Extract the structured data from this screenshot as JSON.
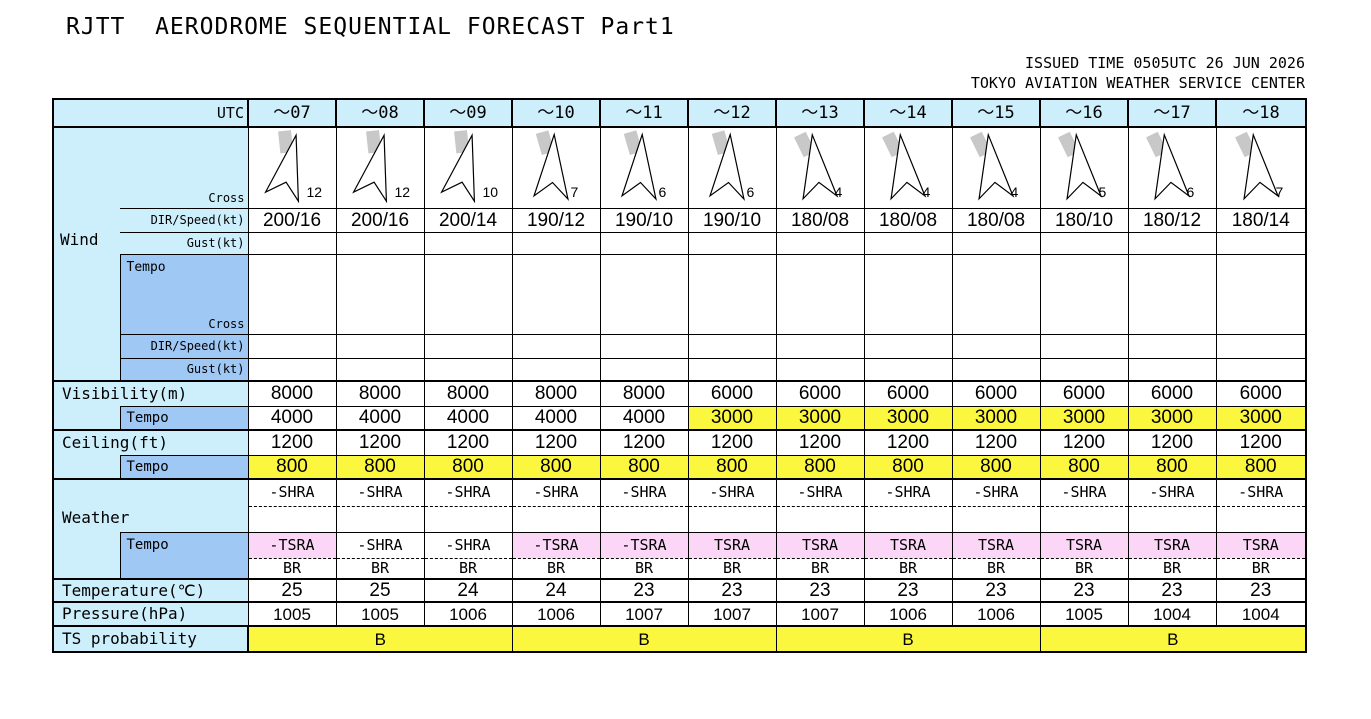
{
  "title": "RJTT  AERODROME SEQUENTIAL FORECAST Part1",
  "issued_line": "ISSUED TIME 0505UTC 26 JUN 2026",
  "center_line": "TOKYO AVIATION WEATHER SERVICE CENTER",
  "labels": {
    "utc": "UTC",
    "cross": "Cross",
    "dir_speed": "DIR/Speed(kt)",
    "gust": "Gust(kt)",
    "wind": "Wind",
    "tempo": "Tempo",
    "visibility": "Visibility(m)",
    "ceiling": "Ceiling(ft)",
    "weather": "Weather",
    "temperature": "Temperature(℃)",
    "pressure": "Pressure(hPa)",
    "ts_probability": "TS probability"
  },
  "hours": [
    "～07",
    "～08",
    "～09",
    "～10",
    "～11",
    "～12",
    "～13",
    "～14",
    "～15",
    "～16",
    "～17",
    "～18"
  ],
  "wind_dir_deg": [
    200,
    200,
    200,
    190,
    190,
    190,
    180,
    180,
    180,
    180,
    180,
    180
  ],
  "cross_wind_kt": [
    "12",
    "12",
    "10",
    "7",
    "6",
    "6",
    "4",
    "4",
    "4",
    "5",
    "6",
    "7"
  ],
  "wind_dir_speed": [
    "200/16",
    "200/16",
    "200/14",
    "190/12",
    "190/10",
    "190/10",
    "180/08",
    "180/08",
    "180/08",
    "180/10",
    "180/12",
    "180/14"
  ],
  "gust": [
    "",
    "",
    "",
    "",
    "",
    "",
    "",
    "",
    "",
    "",
    "",
    ""
  ],
  "visibility": [
    "8000",
    "8000",
    "8000",
    "8000",
    "8000",
    "6000",
    "6000",
    "6000",
    "6000",
    "6000",
    "6000",
    "6000"
  ],
  "visibility_tempo": [
    "4000",
    "4000",
    "4000",
    "4000",
    "4000",
    "3000",
    "3000",
    "3000",
    "3000",
    "3000",
    "3000",
    "3000"
  ],
  "visibility_tempo_highlight": [
    false,
    false,
    false,
    false,
    false,
    true,
    true,
    true,
    true,
    true,
    true,
    true
  ],
  "ceiling": [
    "1200",
    "1200",
    "1200",
    "1200",
    "1200",
    "1200",
    "1200",
    "1200",
    "1200",
    "1200",
    "1200",
    "1200"
  ],
  "ceiling_tempo": [
    "800",
    "800",
    "800",
    "800",
    "800",
    "800",
    "800",
    "800",
    "800",
    "800",
    "800",
    "800"
  ],
  "weather_1": [
    "-SHRA",
    "-SHRA",
    "-SHRA",
    "-SHRA",
    "-SHRA",
    "-SHRA",
    "-SHRA",
    "-SHRA",
    "-SHRA",
    "-SHRA",
    "-SHRA",
    "-SHRA"
  ],
  "weather_2": [
    "",
    "",
    "",
    "",
    "",
    "",
    "",
    "",
    "",
    "",
    "",
    ""
  ],
  "weather_tempo_1": [
    "-TSRA",
    "-SHRA",
    "-SHRA",
    "-TSRA",
    "-TSRA",
    "TSRA",
    "TSRA",
    "TSRA",
    "TSRA",
    "TSRA",
    "TSRA",
    "TSRA"
  ],
  "weather_tempo_1_highlight": [
    true,
    false,
    false,
    true,
    true,
    true,
    true,
    true,
    true,
    true,
    true,
    true
  ],
  "weather_tempo_2": [
    "BR",
    "BR",
    "BR",
    "BR",
    "BR",
    "BR",
    "BR",
    "BR",
    "BR",
    "BR",
    "BR",
    "BR"
  ],
  "temperature": [
    "25",
    "25",
    "24",
    "24",
    "23",
    "23",
    "23",
    "23",
    "23",
    "23",
    "23",
    "23"
  ],
  "pressure": [
    "1005",
    "1005",
    "1006",
    "1006",
    "1007",
    "1007",
    "1007",
    "1006",
    "1006",
    "1005",
    "1004",
    "1004"
  ],
  "ts_probability": [
    "B",
    "B",
    "B",
    "B"
  ],
  "colors": {
    "label_bg": "#cdeffc",
    "tempo_bg": "#9fc8f4",
    "highlight_yellow": "#fbf63e",
    "highlight_pink": "#fbd6f7",
    "arrow_shadow": "#c8c8c8"
  }
}
